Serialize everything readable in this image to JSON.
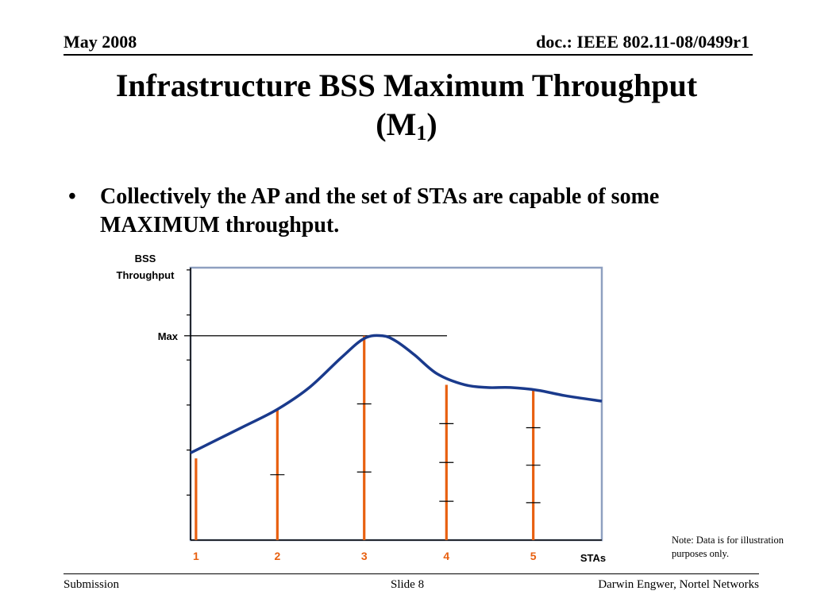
{
  "header": {
    "date": "May 2008",
    "doc": "doc.: IEEE 802.11-08/0499r1"
  },
  "title": {
    "main": "Infrastructure BSS Maximum Throughput",
    "paren_open": "(M",
    "subscript": "1",
    "paren_close": ")"
  },
  "bullet": {
    "marker": "•",
    "text": "Collectively the AP and the set of STAs are capable of some MAXIMUM throughput."
  },
  "chart_data": {
    "type": "line",
    "ylabel": [
      "BSS",
      "Throughput"
    ],
    "max_label": "Max",
    "xlabel": "STAs",
    "categories": [
      "1",
      "2",
      "3",
      "4",
      "5"
    ],
    "ylim": [
      0,
      10
    ],
    "xlim": [
      0,
      9
    ],
    "curve": {
      "x": [
        0,
        0.6,
        1.2,
        1.9,
        2.6,
        3.3,
        3.8,
        4.2,
        4.5,
        4.9,
        5.4,
        6.0,
        6.5,
        7.0,
        7.6,
        8.2,
        9.0
      ],
      "y": [
        3.2,
        3.7,
        4.2,
        4.8,
        5.6,
        6.7,
        7.4,
        7.5,
        7.3,
        6.8,
        6.1,
        5.7,
        5.6,
        5.6,
        5.5,
        5.3,
        5.1
      ]
    },
    "max_value": 7.5,
    "stations": [
      {
        "label": "1",
        "x": 0.05,
        "height": 3.0,
        "segments": 1
      },
      {
        "label": "2",
        "x": 1.9,
        "height": 4.8,
        "segments": 2
      },
      {
        "label": "3",
        "x": 3.8,
        "height": 7.5,
        "segments": 3
      },
      {
        "label": "4",
        "x": 5.6,
        "height": 5.7,
        "segments": 4
      },
      {
        "label": "5",
        "x": 7.5,
        "height": 5.5,
        "segments": 4
      }
    ],
    "yticks": 6
  },
  "note": "Note: Data is for illustration purposes only.",
  "footer": {
    "left": "Submission",
    "center": "Slide 8",
    "right": "Darwin Engwer, Nortel Networks"
  },
  "colors": {
    "bars": "#e86010",
    "curve": "#1a3a8c",
    "frame": "#8fa0c0"
  }
}
